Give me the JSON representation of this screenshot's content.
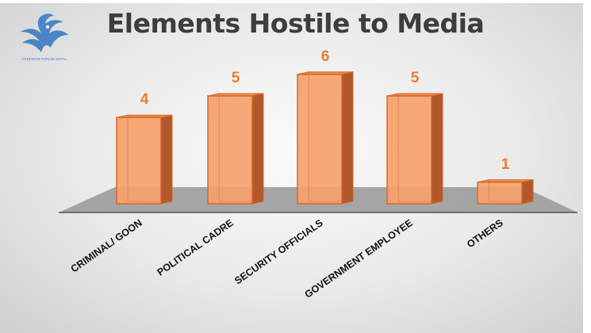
{
  "chart_data": {
    "type": "bar",
    "title": "Elements Hostile to Media",
    "categories": [
      "CRIMINAL/ GOON",
      "POLITICAL CADRE",
      "SECURITY OFFICIALS",
      "GOVERNMENT EMPLOYEE",
      "OTHERS"
    ],
    "values": [
      4,
      5,
      6,
      5,
      1
    ],
    "ylim": [
      0,
      6
    ],
    "grid": false,
    "legend": "none",
    "data_labels": true,
    "style": "3d-column"
  },
  "colors": {
    "bar_front": "#f5a26a",
    "bar_side": "#b1582a",
    "bar_top": "#f08a4a",
    "bar_stroke": "#d8662b",
    "data_label": "#ee7b30",
    "floor": "#9c9c9c",
    "title": "#3d3d3d"
  },
  "logo": {
    "icon": "bird-wing-logo-icon",
    "color": "#4a86c5",
    "text": "FREEDOM FORUM NEPAL"
  }
}
